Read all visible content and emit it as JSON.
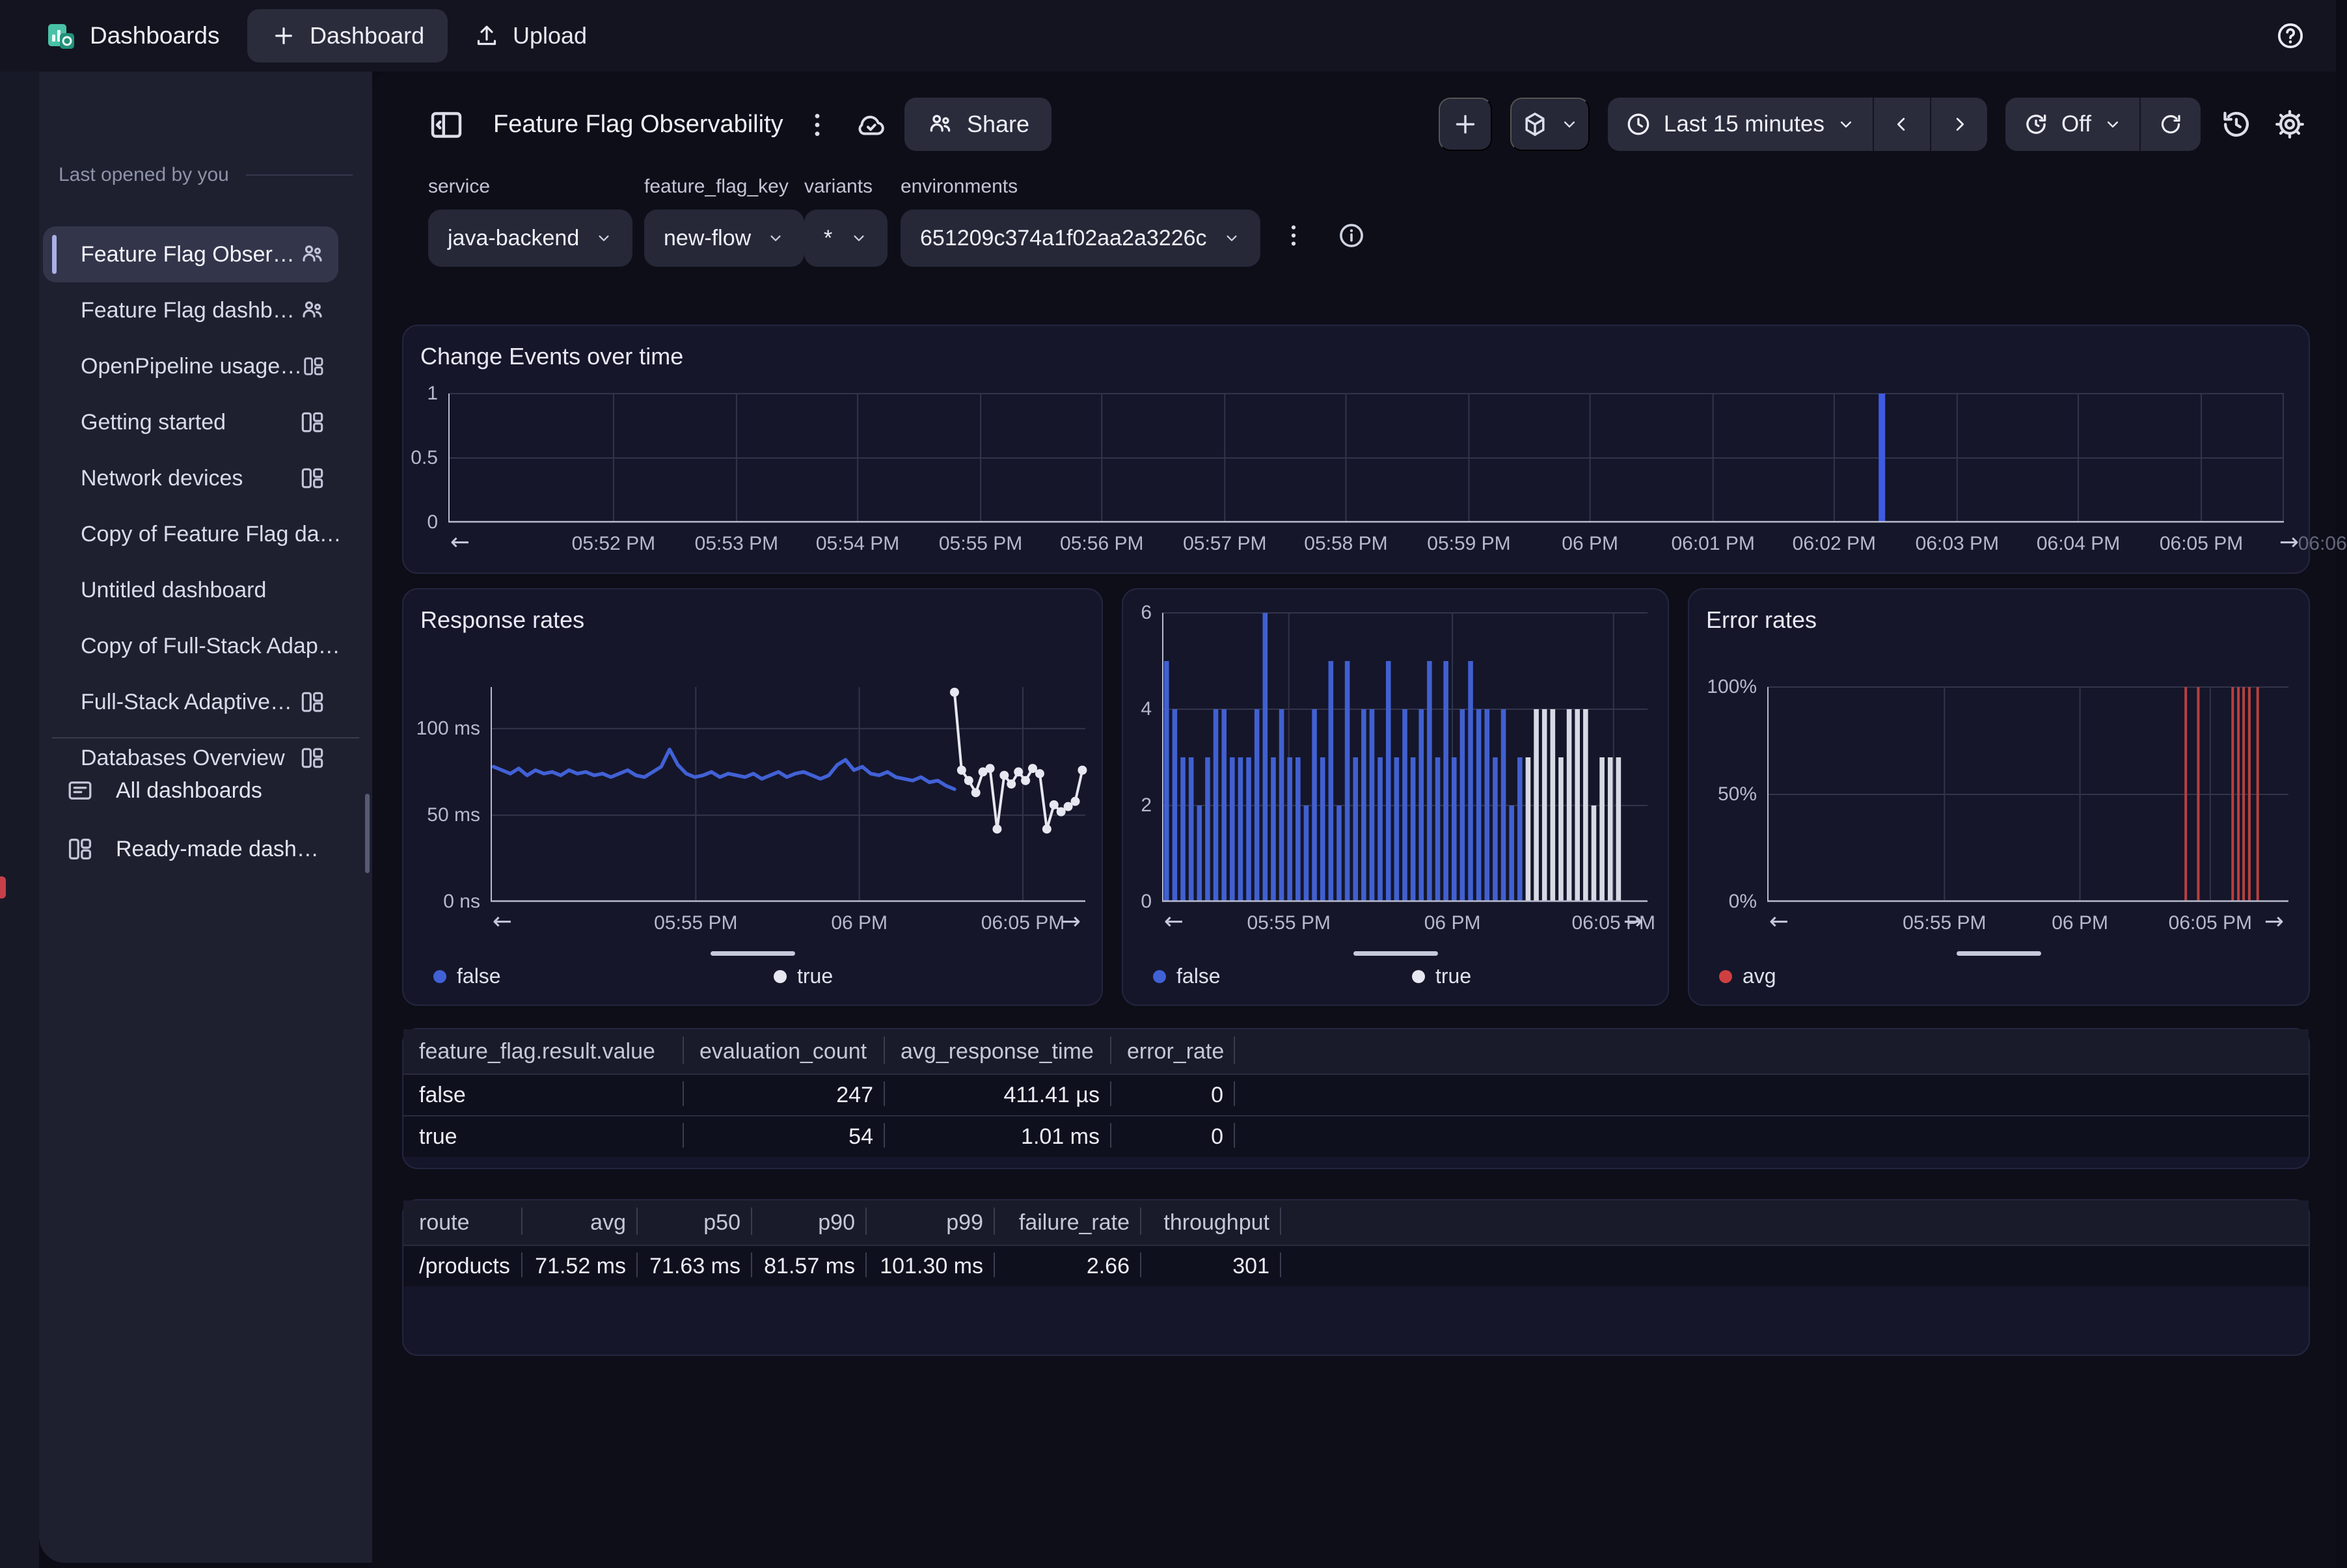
{
  "topbar": {
    "brand": "Dashboards",
    "new_dashboard": "Dashboard",
    "upload": "Upload"
  },
  "sidebar": {
    "section": "Last opened by you",
    "items": [
      {
        "label": "Feature Flag Obser…",
        "icon": "users",
        "selected": true
      },
      {
        "label": "Feature Flag dashb…",
        "icon": "users",
        "selected": false
      },
      {
        "label": "OpenPipeline usage…",
        "icon": "grid",
        "selected": false
      },
      {
        "label": "Getting started",
        "icon": "grid",
        "selected": false
      },
      {
        "label": "Network devices",
        "icon": "grid",
        "selected": false
      },
      {
        "label": "Copy of Feature Flag da…",
        "icon": "",
        "selected": false
      },
      {
        "label": "Untitled dashboard",
        "icon": "",
        "selected": false
      },
      {
        "label": "Copy of Full-Stack Adap…",
        "icon": "",
        "selected": false
      },
      {
        "label": "Full-Stack Adaptive…",
        "icon": "grid",
        "selected": false
      },
      {
        "label": "Databases Overview",
        "icon": "grid",
        "selected": false
      }
    ],
    "footer": [
      {
        "label": "All dashboards",
        "icon": "board"
      },
      {
        "label": "Ready-made dash…",
        "icon": "grid"
      }
    ]
  },
  "header": {
    "title": "Feature Flag Observability",
    "share": "Share",
    "time_range": "Last 15 minutes",
    "auto_refresh": "Off"
  },
  "filters": [
    {
      "label": "service",
      "value": "java-backend"
    },
    {
      "label": "feature_flag_key",
      "value": "new-flow"
    },
    {
      "label": "variants",
      "value": "*"
    },
    {
      "label": "environments",
      "value": "651209c374a1f02aa2a3226c"
    }
  ],
  "chart_data": [
    {
      "type": "bar",
      "title": "Change Events over time",
      "ylim": [
        0,
        1
      ],
      "yticks": [
        {
          "label": "1",
          "v": 1
        },
        {
          "label": "0.5",
          "v": 0.5
        },
        {
          "label": "0",
          "v": 0
        }
      ],
      "xticks": [
        {
          "label": "05:52 PM",
          "f": 0.09
        },
        {
          "label": "05:53 PM",
          "f": 0.157
        },
        {
          "label": "05:54 PM",
          "f": 0.223
        },
        {
          "label": "05:55 PM",
          "f": 0.29
        },
        {
          "label": "05:56 PM",
          "f": 0.356
        },
        {
          "label": "05:57 PM",
          "f": 0.423
        },
        {
          "label": "05:58 PM",
          "f": 0.489
        },
        {
          "label": "05:59 PM",
          "f": 0.556
        },
        {
          "label": "06 PM",
          "f": 0.622
        },
        {
          "label": "06:01 PM",
          "f": 0.689
        },
        {
          "label": "06:02 PM",
          "f": 0.755
        },
        {
          "label": "06:03 PM",
          "f": 0.822
        },
        {
          "label": "06:04 PM",
          "f": 0.888
        },
        {
          "label": "06:05 PM",
          "f": 0.955
        },
        {
          "label": "06:06",
          "f": 1.021,
          "dim": true
        }
      ],
      "bars": [
        {
          "f": 0.781,
          "v": 1
        }
      ],
      "bar_color": "#3f5be0",
      "grid": true,
      "right_arrow_off": 8,
      "legend": []
    },
    {
      "type": "line",
      "title": "Response rates",
      "ylim": [
        0,
        124
      ],
      "yticks": [
        {
          "label": "100 ms",
          "v": 100
        },
        {
          "label": "50 ms",
          "v": 50
        },
        {
          "label": "0 ns",
          "v": 0
        }
      ],
      "xticks": [
        {
          "label": "05:55 PM",
          "f": 0.345
        },
        {
          "label": "06 PM",
          "f": 0.62
        },
        {
          "label": "06:05 PM",
          "f": 0.895
        }
      ],
      "series": [
        {
          "name": "false",
          "color": "#4161d6",
          "marker": false,
          "x0": 0.005,
          "x1": 0.78,
          "values": [
            78,
            76,
            74,
            77,
            73,
            76,
            74,
            75,
            73,
            76,
            74,
            75,
            73,
            74,
            72,
            74,
            76,
            73,
            72,
            75,
            78,
            88,
            79,
            74,
            72,
            73,
            75,
            72,
            74,
            73,
            72,
            74,
            71,
            73,
            75,
            72,
            74,
            75,
            73,
            71,
            73,
            79,
            82,
            76,
            78,
            74,
            73,
            75,
            72,
            71,
            70,
            72,
            69,
            70,
            67,
            65
          ]
        },
        {
          "name": "true",
          "color": "#e6e7f0",
          "marker": true,
          "x0": 0.78,
          "x1": 0.995,
          "values": [
            121,
            76,
            70,
            63,
            75,
            77,
            42,
            73,
            68,
            75,
            70,
            77,
            74,
            42,
            56,
            52,
            55,
            58,
            76
          ]
        }
      ],
      "grid": true,
      "right_arrow_off": -22,
      "legend": [
        {
          "label": "false",
          "color": "#4161d6"
        },
        {
          "label": "true",
          "color": "#e6e7f0"
        }
      ],
      "scrollbar": true
    },
    {
      "type": "bars",
      "title": "",
      "ylim": [
        0,
        6
      ],
      "yticks": [
        {
          "label": "6",
          "v": 6
        },
        {
          "label": "4",
          "v": 4
        },
        {
          "label": "2",
          "v": 2
        },
        {
          "label": "0",
          "v": 0
        }
      ],
      "xticks": [
        {
          "label": "05:55 PM",
          "f": 0.261
        },
        {
          "label": "06 PM",
          "f": 0.598
        },
        {
          "label": "06:05 PM",
          "f": 0.93
        }
      ],
      "span": [
        0.004,
        0.952
      ],
      "series": [
        {
          "name": "false",
          "color": "#4160d0",
          "values": [
            5,
            4,
            3,
            3,
            2,
            3,
            4,
            4,
            3,
            3,
            3,
            4,
            6,
            3,
            4,
            3,
            3,
            2,
            4,
            3,
            5,
            2,
            5,
            3,
            4,
            4,
            3,
            5,
            3,
            4,
            3,
            4,
            5,
            3,
            5,
            3,
            4,
            5,
            4,
            4,
            3,
            4,
            2,
            3
          ]
        },
        {
          "name": "true",
          "color": "#d7d9e4",
          "values": [
            3,
            4,
            4,
            4,
            3,
            4,
            4,
            4,
            2,
            3,
            3,
            3
          ]
        }
      ],
      "grid": true,
      "right_arrow_off": -22,
      "legend": [
        {
          "label": "false",
          "color": "#4161d6"
        },
        {
          "label": "true",
          "color": "#e6e7f0"
        }
      ],
      "scrollbar": true
    },
    {
      "type": "spikes",
      "title": "Error rates",
      "ylim": [
        0,
        100
      ],
      "yticks": [
        {
          "label": "100%",
          "v": 100
        },
        {
          "label": "50%",
          "v": 50
        },
        {
          "label": "0%",
          "v": 0
        }
      ],
      "xticks": [
        {
          "label": "05:55 PM",
          "f": 0.34
        },
        {
          "label": "06 PM",
          "f": 0.6
        },
        {
          "label": "06:05 PM",
          "f": 0.85
        }
      ],
      "spikes": [
        0.803,
        0.827,
        0.893,
        0.904,
        0.914,
        0.925,
        0.941
      ],
      "spike_color": "#b8403e",
      "grid": true,
      "right_arrow_off": -22,
      "legend": [
        {
          "label": "avg",
          "color": "#cf3f3f"
        }
      ],
      "scrollbar": true
    }
  ],
  "tables": [
    {
      "columns": [
        {
          "label": "feature_flag.result.value",
          "align": "left"
        },
        {
          "label": "evaluation_count",
          "align": "right"
        },
        {
          "label": "avg_response_time",
          "align": "right"
        },
        {
          "label": "error_rate",
          "align": "right"
        }
      ],
      "rows": [
        [
          "false",
          "247",
          "411.41 µs",
          "0"
        ],
        [
          "true",
          "54",
          "1.01 ms",
          "0"
        ]
      ]
    },
    {
      "columns": [
        {
          "label": "route",
          "align": "left"
        },
        {
          "label": "avg",
          "align": "right"
        },
        {
          "label": "p50",
          "align": "right"
        },
        {
          "label": "p90",
          "align": "right"
        },
        {
          "label": "p99",
          "align": "right"
        },
        {
          "label": "failure_rate",
          "align": "right"
        },
        {
          "label": "throughput",
          "align": "right"
        }
      ],
      "rows": [
        [
          "/products",
          "71.52 ms",
          "71.63 ms",
          "81.57 ms",
          "101.30 ms",
          "2.66",
          "301"
        ]
      ]
    }
  ],
  "colors": {
    "accent_blue": "#4161d6",
    "series_true": "#e6e7f0",
    "error_red": "#b8403e",
    "brand_teal": "#2ea08a"
  }
}
